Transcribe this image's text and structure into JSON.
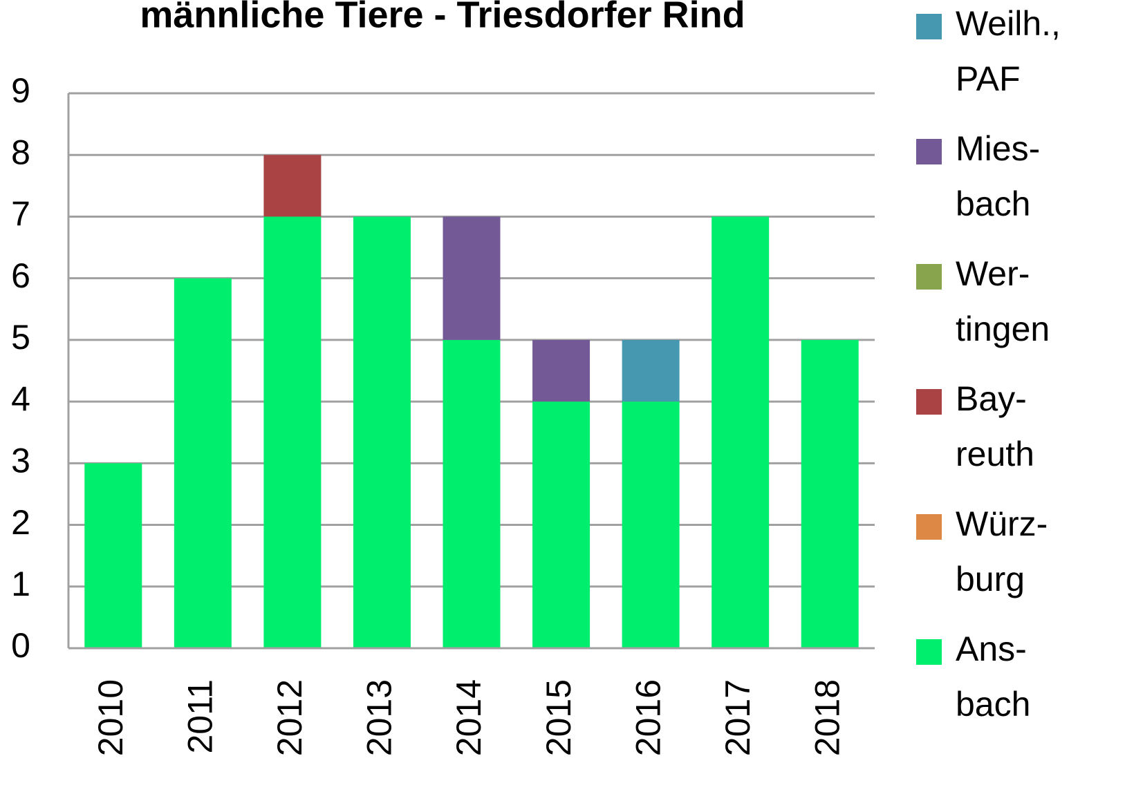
{
  "chart_data": {
    "type": "stacked_bar",
    "title": "männliche Tiere - Triesdorfer Rind",
    "categories": [
      "2010",
      "2011",
      "2012",
      "2013",
      "2014",
      "2015",
      "2016",
      "2017",
      "2018"
    ],
    "series": [
      {
        "name": "Ans-\nbach",
        "color": "#00ee6e",
        "values": [
          3,
          6,
          7,
          7,
          5,
          4,
          4,
          7,
          5
        ]
      },
      {
        "name": "Würz-\nburg",
        "color": "#dd8844",
        "values": [
          0,
          0,
          0,
          0,
          0,
          0,
          0,
          0,
          0
        ]
      },
      {
        "name": "Bay-\nreuth",
        "color": "#aa4444",
        "values": [
          0,
          0,
          1,
          0,
          0,
          0,
          0,
          0,
          0
        ]
      },
      {
        "name": "Wer-\ntingen",
        "color": "#88a44c",
        "values": [
          0,
          0,
          0,
          0,
          0,
          0,
          0,
          0,
          0
        ]
      },
      {
        "name": "Mies-\nbach",
        "color": "#735a96",
        "values": [
          0,
          0,
          0,
          0,
          2,
          1,
          0,
          0,
          0
        ]
      },
      {
        "name": "Weilh.,\nPAF",
        "color": "#4598b0",
        "values": [
          0,
          0,
          0,
          0,
          0,
          0,
          1,
          0,
          0
        ]
      }
    ],
    "ylim": [
      0,
      9
    ],
    "yticks": [
      0,
      1,
      2,
      3,
      4,
      5,
      6,
      7,
      8,
      9
    ],
    "grid": true,
    "legend": "right"
  }
}
